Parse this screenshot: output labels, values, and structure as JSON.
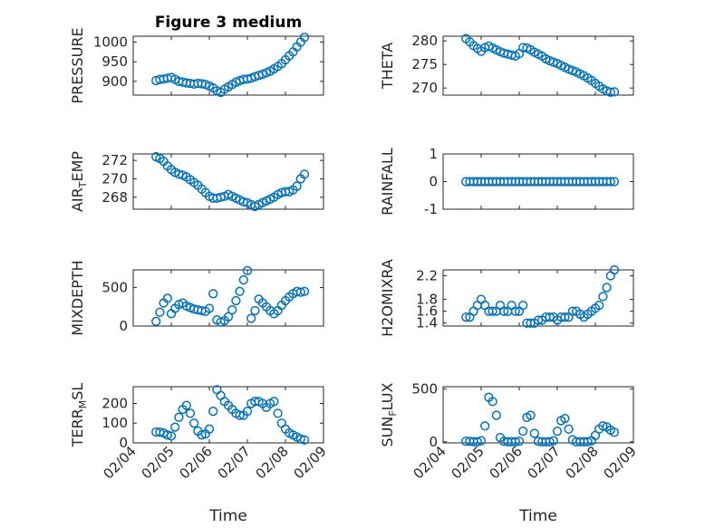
{
  "figure_title": "Figure 3 medium",
  "chart_data": [
    {
      "type": "scatter",
      "ylabel": "PRESSURE",
      "ylabel_parts": [
        "PRESSURE"
      ],
      "xlim": [
        "02/04",
        "02/09"
      ],
      "ylim": [
        865,
        1015
      ],
      "yticks": [
        900,
        950,
        1000
      ],
      "yminor": [
        875,
        925,
        975
      ],
      "color": "#0072BD",
      "x": [
        4.6,
        4.7,
        4.8,
        4.9,
        5.0,
        5.1,
        5.2,
        5.3,
        5.4,
        5.5,
        5.6,
        5.7,
        5.8,
        5.9,
        6.0,
        6.1,
        6.2,
        6.3,
        6.4,
        6.5,
        6.6,
        6.7,
        6.8,
        6.9,
        7.0,
        7.1,
        7.2,
        7.3,
        7.4,
        7.5,
        7.6,
        7.7,
        7.8,
        7.9,
        8.0,
        8.1,
        8.2,
        8.3,
        8.4,
        8.5
      ],
      "y": [
        902,
        905,
        906,
        908,
        910,
        905,
        900,
        898,
        896,
        895,
        893,
        895,
        894,
        892,
        888,
        883,
        876,
        872,
        880,
        886,
        892,
        898,
        902,
        905,
        906,
        908,
        912,
        915,
        918,
        922,
        926,
        932,
        938,
        945,
        955,
        965,
        975,
        988,
        1000,
        1012
      ]
    },
    {
      "type": "scatter",
      "ylabel": "THETA",
      "ylabel_parts": [
        "THETA"
      ],
      "xlim": [
        "02/04",
        "02/09"
      ],
      "ylim": [
        268.5,
        281
      ],
      "yticks": [
        270,
        275,
        280
      ],
      "yminor": [
        272.5,
        277.5
      ],
      "color": "#0072BD",
      "x": [
        4.6,
        4.7,
        4.8,
        4.9,
        5.0,
        5.1,
        5.2,
        5.3,
        5.4,
        5.5,
        5.6,
        5.7,
        5.8,
        5.9,
        6.0,
        6.1,
        6.2,
        6.3,
        6.4,
        6.5,
        6.6,
        6.7,
        6.8,
        6.9,
        7.0,
        7.1,
        7.2,
        7.3,
        7.4,
        7.5,
        7.6,
        7.7,
        7.8,
        7.9,
        8.0,
        8.1,
        8.2,
        8.3,
        8.4,
        8.5
      ],
      "y": [
        280.5,
        279.8,
        279.0,
        278.4,
        277.8,
        278.6,
        278.9,
        278.5,
        278.1,
        277.7,
        277.4,
        277.2,
        277.0,
        276.8,
        277.3,
        278.6,
        278.5,
        278.1,
        277.6,
        277.2,
        276.8,
        276.2,
        275.8,
        275.5,
        275.2,
        274.8,
        274.4,
        274.0,
        273.7,
        273.4,
        273.0,
        272.6,
        272.1,
        271.6,
        271.0,
        270.4,
        269.8,
        269.4,
        269.1,
        269.2
      ]
    },
    {
      "type": "scatter",
      "ylabel": "AIR_TEMP",
      "ylabel_parts": [
        "AIR",
        "T",
        "EMP"
      ],
      "xlim": [
        "02/04",
        "02/09"
      ],
      "ylim": [
        266.7,
        272.7
      ],
      "yticks": [
        268,
        270,
        272
      ],
      "yminor": [
        267,
        269,
        271
      ],
      "color": "#0072BD",
      "x": [
        4.6,
        4.7,
        4.8,
        4.9,
        5.0,
        5.1,
        5.2,
        5.3,
        5.4,
        5.5,
        5.6,
        5.7,
        5.8,
        5.9,
        6.0,
        6.1,
        6.2,
        6.3,
        6.4,
        6.5,
        6.6,
        6.7,
        6.8,
        6.9,
        7.0,
        7.1,
        7.2,
        7.3,
        7.4,
        7.5,
        7.6,
        7.7,
        7.8,
        7.9,
        8.0,
        8.1,
        8.2,
        8.3,
        8.4,
        8.5
      ],
      "y": [
        272.4,
        272.2,
        271.9,
        271.4,
        271.0,
        270.7,
        270.5,
        270.4,
        270.2,
        269.9,
        269.6,
        269.3,
        268.9,
        268.5,
        268.1,
        267.9,
        267.9,
        268.0,
        268.1,
        268.3,
        268.1,
        267.9,
        267.7,
        267.5,
        267.4,
        267.2,
        267.0,
        267.2,
        267.4,
        267.6,
        267.8,
        268.0,
        268.3,
        268.5,
        268.6,
        268.6,
        268.8,
        269.2,
        270.0,
        270.5
      ]
    },
    {
      "type": "scatter",
      "ylabel": "RAINFALL",
      "ylabel_parts": [
        "RAINFALL"
      ],
      "xlim": [
        "02/04",
        "02/09"
      ],
      "ylim": [
        -1,
        1
      ],
      "yticks": [
        -1,
        0,
        1
      ],
      "yminor": [
        -0.5,
        0.5
      ],
      "color": "#0072BD",
      "x": [
        4.6,
        4.7,
        4.8,
        4.9,
        5.0,
        5.1,
        5.2,
        5.3,
        5.4,
        5.5,
        5.6,
        5.7,
        5.8,
        5.9,
        6.0,
        6.1,
        6.2,
        6.3,
        6.4,
        6.5,
        6.6,
        6.7,
        6.8,
        6.9,
        7.0,
        7.1,
        7.2,
        7.3,
        7.4,
        7.5,
        7.6,
        7.7,
        7.8,
        7.9,
        8.0,
        8.1,
        8.2,
        8.3,
        8.4,
        8.5
      ],
      "y": [
        0,
        0,
        0,
        0,
        0,
        0,
        0,
        0,
        0,
        0,
        0,
        0,
        0,
        0,
        0,
        0,
        0,
        0,
        0,
        0,
        0,
        0,
        0,
        0,
        0,
        0,
        0,
        0,
        0,
        0,
        0,
        0,
        0,
        0,
        0,
        0,
        0,
        0,
        0,
        0
      ]
    },
    {
      "type": "scatter",
      "ylabel": "MIXDEPTH",
      "ylabel_parts": [
        "MIXDEPTH"
      ],
      "xlim": [
        "02/04",
        "02/09"
      ],
      "ylim": [
        0,
        730
      ],
      "yticks": [
        0,
        500
      ],
      "yminor": [
        250
      ],
      "color": "#0072BD",
      "x": [
        4.6,
        4.7,
        4.8,
        4.9,
        5.0,
        5.1,
        5.2,
        5.3,
        5.4,
        5.5,
        5.6,
        5.7,
        5.8,
        5.9,
        6.0,
        6.1,
        6.2,
        6.3,
        6.4,
        6.5,
        6.6,
        6.7,
        6.8,
        6.9,
        7.0,
        7.1,
        7.2,
        7.3,
        7.4,
        7.5,
        7.6,
        7.7,
        7.8,
        7.9,
        8.0,
        8.1,
        8.2,
        8.3,
        8.4,
        8.5
      ],
      "y": [
        60,
        180,
        300,
        360,
        160,
        230,
        280,
        300,
        260,
        240,
        220,
        210,
        200,
        190,
        230,
        420,
        80,
        50,
        70,
        120,
        210,
        330,
        450,
        600,
        720,
        100,
        200,
        350,
        300,
        250,
        200,
        160,
        200,
        270,
        330,
        380,
        420,
        450,
        440,
        450
      ]
    },
    {
      "type": "scatter",
      "ylabel": "H2OMIXRA",
      "ylabel_parts": [
        "H2OMIXRA"
      ],
      "xlim": [
        "02/04",
        "02/09"
      ],
      "ylim": [
        1.35,
        2.3
      ],
      "yticks": [
        1.4,
        1.6,
        1.8,
        2.2
      ],
      "yminor": [
        1.5,
        1.7,
        1.9,
        2.0,
        2.1
      ],
      "color": "#0072BD",
      "x": [
        4.6,
        4.7,
        4.8,
        4.9,
        5.0,
        5.1,
        5.2,
        5.3,
        5.4,
        5.5,
        5.6,
        5.7,
        5.8,
        5.9,
        6.0,
        6.1,
        6.2,
        6.3,
        6.4,
        6.5,
        6.6,
        6.7,
        6.8,
        6.9,
        7.0,
        7.1,
        7.2,
        7.3,
        7.4,
        7.5,
        7.6,
        7.7,
        7.8,
        7.9,
        8.0,
        8.1,
        8.2,
        8.3,
        8.4,
        8.5
      ],
      "y": [
        1.5,
        1.5,
        1.6,
        1.7,
        1.8,
        1.7,
        1.6,
        1.6,
        1.6,
        1.7,
        1.6,
        1.6,
        1.7,
        1.6,
        1.6,
        1.7,
        1.4,
        1.4,
        1.4,
        1.45,
        1.45,
        1.5,
        1.5,
        1.5,
        1.45,
        1.5,
        1.5,
        1.5,
        1.6,
        1.6,
        1.55,
        1.5,
        1.55,
        1.6,
        1.65,
        1.7,
        1.85,
        2.0,
        2.2,
        2.3
      ]
    },
    {
      "type": "scatter",
      "ylabel": "TERR_MSL",
      "ylabel_parts": [
        "TERR",
        "M",
        "SL"
      ],
      "xlim": [
        "02/04",
        "02/09"
      ],
      "ylim": [
        0,
        285
      ],
      "yticks": [
        0,
        100,
        200
      ],
      "yminor": [
        50,
        150,
        250
      ],
      "color": "#0072BD",
      "x": [
        4.6,
        4.7,
        4.8,
        4.9,
        5.0,
        5.1,
        5.2,
        5.3,
        5.4,
        5.5,
        5.6,
        5.7,
        5.8,
        5.9,
        6.0,
        6.1,
        6.2,
        6.3,
        6.4,
        6.5,
        6.6,
        6.7,
        6.8,
        6.9,
        7.0,
        7.1,
        7.2,
        7.3,
        7.4,
        7.5,
        7.6,
        7.7,
        7.8,
        7.9,
        8.0,
        8.1,
        8.2,
        8.3,
        8.4,
        8.5
      ],
      "y": [
        55,
        55,
        50,
        40,
        35,
        80,
        130,
        170,
        190,
        150,
        100,
        60,
        40,
        45,
        70,
        160,
        270,
        240,
        210,
        190,
        170,
        150,
        140,
        140,
        160,
        200,
        210,
        210,
        200,
        180,
        200,
        210,
        150,
        100,
        70,
        50,
        40,
        30,
        20,
        15
      ]
    },
    {
      "type": "scatter",
      "ylabel": "SUN_FLUX",
      "ylabel_parts": [
        "SUN",
        "F",
        "LUX"
      ],
      "xlim": [
        "02/04",
        "02/09"
      ],
      "ylim": [
        -10,
        520
      ],
      "yticks": [
        0,
        500
      ],
      "yminor": [
        250
      ],
      "color": "#0072BD",
      "x": [
        4.6,
        4.7,
        4.8,
        4.9,
        5.0,
        5.1,
        5.2,
        5.3,
        5.4,
        5.5,
        5.6,
        5.7,
        5.8,
        5.9,
        6.0,
        6.1,
        6.2,
        6.3,
        6.4,
        6.5,
        6.6,
        6.7,
        6.8,
        6.9,
        7.0,
        7.1,
        7.2,
        7.3,
        7.4,
        7.5,
        7.6,
        7.7,
        7.8,
        7.9,
        8.0,
        8.1,
        8.2,
        8.3,
        8.4,
        8.5
      ],
      "y": [
        5,
        5,
        0,
        0,
        10,
        150,
        420,
        380,
        250,
        40,
        5,
        0,
        0,
        0,
        5,
        100,
        230,
        250,
        80,
        5,
        0,
        0,
        0,
        10,
        100,
        200,
        220,
        120,
        20,
        0,
        0,
        0,
        0,
        10,
        60,
        120,
        150,
        140,
        110,
        90
      ]
    }
  ],
  "xaxis": {
    "ticks": [
      4,
      5,
      6,
      7,
      8,
      9
    ],
    "ticklabels": [
      "02/04",
      "02/05",
      "02/06",
      "02/07",
      "02/08",
      "02/09"
    ],
    "minor": [
      4.5,
      5.5,
      6.5,
      7.5,
      8.5
    ],
    "label": "Time"
  }
}
